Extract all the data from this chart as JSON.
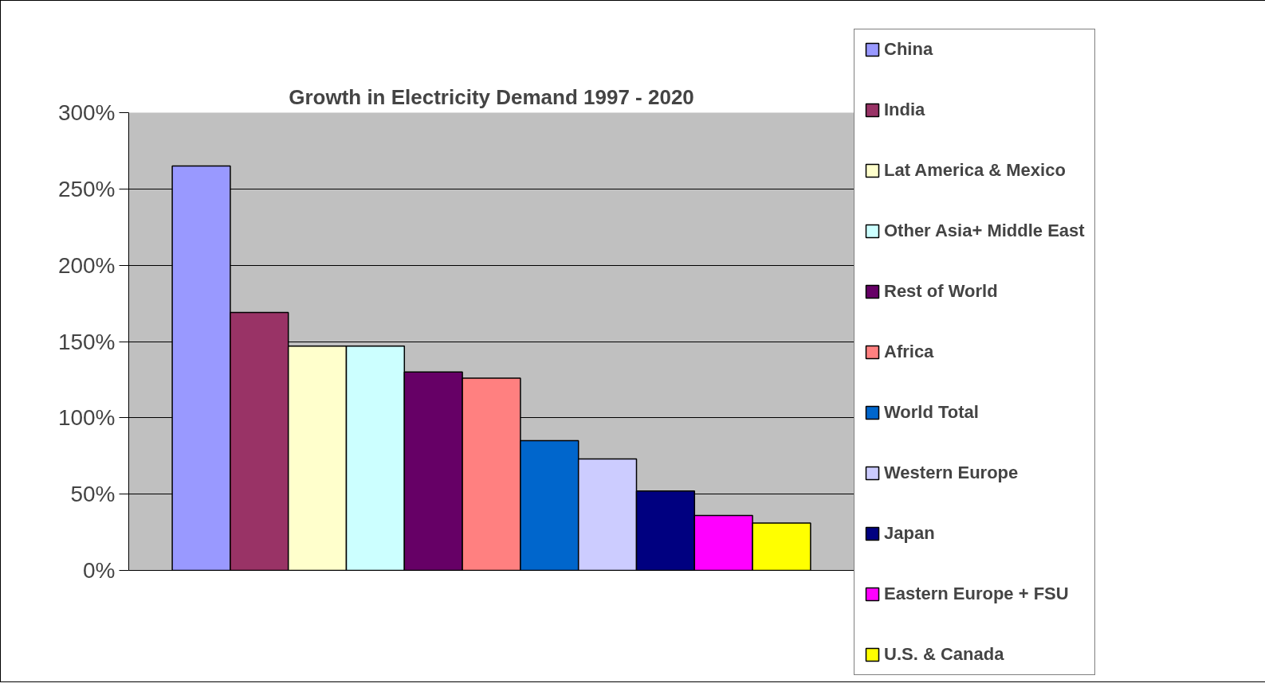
{
  "chart_data": {
    "type": "bar",
    "title": "Growth in Electricity Demand 1997 - 2020",
    "categories": [
      null
    ],
    "series": [
      {
        "name": "China",
        "color": "#9999ff",
        "values": [
          265
        ]
      },
      {
        "name": "India",
        "color": "#993366",
        "values": [
          169
        ]
      },
      {
        "name": "Lat America & Mexico",
        "color": "#ffffcc",
        "values": [
          147
        ]
      },
      {
        "name": "Other Asia+ Middle East",
        "color": "#ccffff",
        "values": [
          147
        ]
      },
      {
        "name": "Rest of World",
        "color": "#660066",
        "values": [
          130
        ]
      },
      {
        "name": "Africa",
        "color": "#ff8080",
        "values": [
          126
        ]
      },
      {
        "name": "World Total",
        "color": "#0066cc",
        "values": [
          85
        ]
      },
      {
        "name": "Western Europe",
        "color": "#ccccff",
        "values": [
          73
        ]
      },
      {
        "name": "Japan",
        "color": "#000080",
        "values": [
          52
        ]
      },
      {
        "name": "Eastern Europe + FSU",
        "color": "#ff00ff",
        "values": [
          36
        ]
      },
      {
        "name": "U.S. & Canada",
        "color": "#ffff00",
        "values": [
          31
        ]
      }
    ],
    "ylim": [
      0,
      300
    ],
    "yticks": [
      {
        "value": 0,
        "label": "0%"
      },
      {
        "value": 50,
        "label": "50%"
      },
      {
        "value": 100,
        "label": "100%"
      },
      {
        "value": 150,
        "label": "150%"
      },
      {
        "value": 200,
        "label": "200%"
      },
      {
        "value": 250,
        "label": "250%"
      },
      {
        "value": 300,
        "label": "300%"
      }
    ],
    "grid": "y",
    "legend": "right"
  }
}
